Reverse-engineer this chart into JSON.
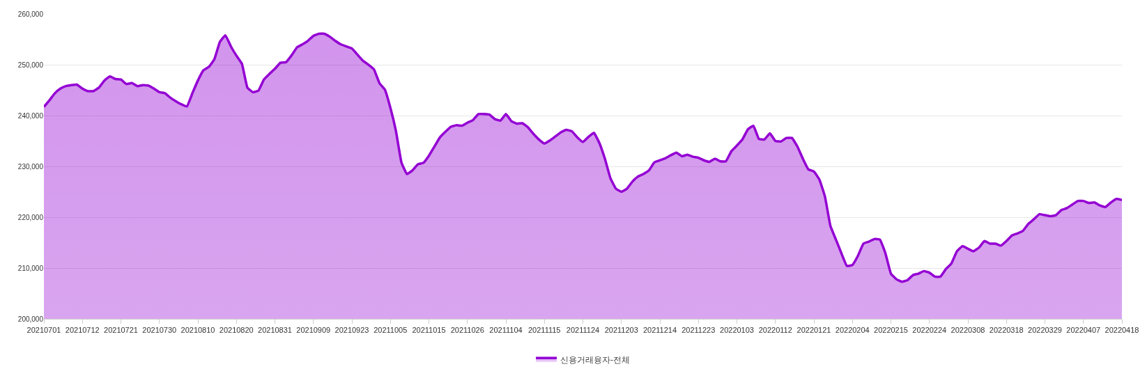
{
  "chart_data": {
    "type": "area",
    "categories": [
      "20210701",
      null,
      null,
      null,
      null,
      null,
      null,
      "20210712",
      null,
      null,
      null,
      null,
      null,
      null,
      "20210721",
      null,
      null,
      null,
      null,
      null,
      null,
      "20210730",
      null,
      null,
      null,
      null,
      null,
      null,
      "20210810",
      null,
      null,
      null,
      null,
      null,
      null,
      "20210820",
      null,
      null,
      null,
      null,
      null,
      null,
      "20210831",
      null,
      null,
      null,
      null,
      null,
      null,
      "20210909",
      null,
      null,
      null,
      null,
      null,
      null,
      "20210923",
      null,
      null,
      null,
      null,
      null,
      null,
      "20211005",
      null,
      null,
      null,
      null,
      null,
      null,
      "20211015",
      null,
      null,
      null,
      null,
      null,
      null,
      "20211026",
      null,
      null,
      null,
      null,
      null,
      null,
      "20211104",
      null,
      null,
      null,
      null,
      null,
      null,
      "20211115",
      null,
      null,
      null,
      null,
      null,
      null,
      "20211124",
      null,
      null,
      null,
      null,
      null,
      null,
      "20211203",
      null,
      null,
      null,
      null,
      null,
      null,
      "20211214",
      null,
      null,
      null,
      null,
      null,
      null,
      "20211223",
      null,
      null,
      null,
      null,
      null,
      null,
      "20220103",
      null,
      null,
      null,
      null,
      null,
      null,
      "20220112",
      null,
      null,
      null,
      null,
      null,
      null,
      "20220121",
      null,
      null,
      null,
      null,
      null,
      null,
      "20220204",
      null,
      null,
      null,
      null,
      null,
      null,
      "20220215",
      null,
      null,
      null,
      null,
      null,
      null,
      "20220224",
      null,
      null,
      null,
      null,
      null,
      null,
      "20220308",
      null,
      null,
      null,
      null,
      null,
      null,
      "20220318",
      null,
      null,
      null,
      null,
      null,
      null,
      "20220329",
      null,
      null,
      null,
      null,
      null,
      null,
      "20220407",
      null,
      null,
      null,
      null,
      null,
      null,
      "20220418"
    ],
    "series": [
      {
        "name": "신용거래융자-전체",
        "color": "#9400d3",
        "values": [
          241700,
          243000,
          244400,
          245300,
          245800,
          246000,
          246100,
          245300,
          244800,
          244800,
          245500,
          246900,
          247700,
          247200,
          247100,
          246200,
          246400,
          245800,
          246000,
          245900,
          245300,
          244600,
          244400,
          243500,
          242800,
          242200,
          241800,
          244400,
          246900,
          248900,
          249600,
          251100,
          254500,
          255800,
          253600,
          251800,
          250200,
          245500,
          244600,
          244900,
          247100,
          248200,
          249200,
          250400,
          250500,
          251800,
          253400,
          254000,
          254700,
          255700,
          256100,
          256100,
          255500,
          254700,
          254000,
          253600,
          253200,
          252000,
          250800,
          250000,
          249100,
          246400,
          245100,
          241500,
          237000,
          230800,
          228500,
          229200,
          230400,
          230700,
          232100,
          233900,
          235700,
          236800,
          237800,
          238100,
          238000,
          238600,
          239100,
          240300,
          240300,
          240200,
          239300,
          239000,
          240300,
          238900,
          238400,
          238500,
          237700,
          236400,
          235300,
          234500,
          235100,
          235900,
          236700,
          237200,
          236900,
          235700,
          234800,
          235800,
          236600,
          234600,
          231500,
          227700,
          225600,
          225000,
          225600,
          227000,
          228000,
          228500,
          229200,
          230800,
          231200,
          231600,
          232200,
          232700,
          232000,
          232300,
          231900,
          231700,
          231200,
          230900,
          231500,
          231000,
          231000,
          233000,
          234100,
          235300,
          237300,
          238000,
          235400,
          235300,
          236500,
          235000,
          234900,
          235600,
          235600,
          233900,
          231500,
          229400,
          229000,
          227400,
          224100,
          218300,
          215600,
          212900,
          210400,
          210600,
          212400,
          214800,
          215200,
          215700,
          215600,
          212900,
          208900,
          207800,
          207300,
          207600,
          208600,
          208900,
          209400,
          209100,
          208300,
          208300,
          209800,
          210900,
          213300,
          214300,
          213800,
          213300,
          214000,
          215300,
          214800,
          214800,
          214400,
          215300,
          216400,
          216800,
          217300,
          218700,
          219600,
          220600,
          220400,
          220200,
          220400,
          221400,
          221800,
          222500,
          223200,
          223200,
          222800,
          222900,
          222300,
          222000,
          222900,
          223600,
          223400
        ]
      }
    ],
    "ylim": [
      200000,
      260000
    ],
    "yticks": [
      {
        "value": 200000,
        "label": "200,000"
      },
      {
        "value": 210000,
        "label": "210,000"
      },
      {
        "value": 220000,
        "label": "220,000"
      },
      {
        "value": 230000,
        "label": "230,000"
      },
      {
        "value": 240000,
        "label": "240,000"
      },
      {
        "value": 250000,
        "label": "250,000"
      },
      {
        "value": 260000,
        "label": "260,000"
      }
    ],
    "grid": "y",
    "legend": "bottom",
    "line_style": "solid"
  }
}
